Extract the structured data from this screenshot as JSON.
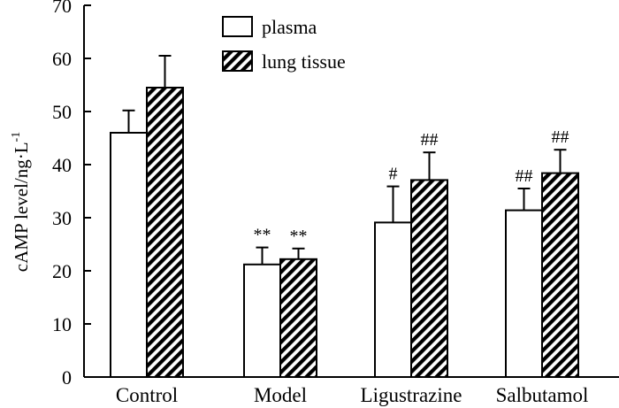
{
  "chart_data": {
    "type": "bar",
    "title": "",
    "xlabel": "",
    "ylabel": "cAMP level/ng·L",
    "ylabel_superscript": "-1",
    "ylim": [
      0,
      70
    ],
    "yticks": [
      0,
      10,
      20,
      30,
      40,
      50,
      60,
      70
    ],
    "categories": [
      "Control",
      "Model",
      "Ligustrazine",
      "Salbutamol"
    ],
    "series": [
      {
        "name": "plasma",
        "fill": "#ffffff",
        "pattern": "none",
        "values": [
          46,
          21.2,
          29.1,
          31.4
        ],
        "errors": [
          4.2,
          3.2,
          6.8,
          4.1
        ],
        "annotations": [
          "",
          "**",
          "",
          "##"
        ]
      },
      {
        "name": "lung tissue",
        "fill": "#ffffff",
        "pattern": "diagonal-hatch",
        "values": [
          54.5,
          22.2,
          37.1,
          38.4
        ],
        "errors": [
          6.0,
          2.0,
          5.2,
          4.4
        ],
        "annotations": [
          "",
          "**",
          "##",
          "##"
        ]
      }
    ],
    "extra_annotations": [
      {
        "category": "Ligustrazine",
        "series": "plasma",
        "text": "#"
      }
    ],
    "legend_position": "top-center",
    "grid": false
  }
}
